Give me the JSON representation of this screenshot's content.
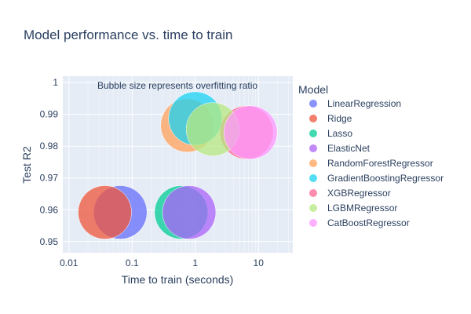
{
  "chart_data": {
    "type": "scatter",
    "title": "Model performance vs. time to train",
    "xlabel": "Time to train (seconds)",
    "ylabel": "Test R2",
    "x_scale": "log",
    "x_range": [
      0.008,
      35
    ],
    "y_range": [
      0.9465,
      1.002
    ],
    "x_ticks": [
      {
        "value": 0.01,
        "label": "0.01"
      },
      {
        "value": 0.1,
        "label": "0.1"
      },
      {
        "value": 1,
        "label": "1"
      },
      {
        "value": 10,
        "label": "10"
      }
    ],
    "y_ticks": [
      {
        "value": 0.95,
        "label": "0.95"
      },
      {
        "value": 0.96,
        "label": "0.96"
      },
      {
        "value": 0.97,
        "label": "0.97"
      },
      {
        "value": 0.98,
        "label": "0.98"
      },
      {
        "value": 0.99,
        "label": "0.99"
      },
      {
        "value": 1.0,
        "label": "1"
      }
    ],
    "annotation": "Bubble size represents overfitting ratio",
    "legend_title": "Model",
    "legend_position": "right",
    "grid": true,
    "series": [
      {
        "name": "LinearRegression",
        "color": "#636efa",
        "x": 0.065,
        "y": 0.9592,
        "size": 1.0
      },
      {
        "name": "Ridge",
        "color": "#ef553b",
        "x": 0.037,
        "y": 0.9592,
        "size": 1.0
      },
      {
        "name": "Lasso",
        "color": "#00cc96",
        "x": 0.6,
        "y": 0.9592,
        "size": 1.0
      },
      {
        "name": "ElasticNet",
        "color": "#ab63fa",
        "x": 0.8,
        "y": 0.9592,
        "size": 1.0
      },
      {
        "name": "RandomForestRegressor",
        "color": "#ffa15a",
        "x": 0.75,
        "y": 0.9865,
        "size": 1.0
      },
      {
        "name": "GradientBoostingRegressor",
        "color": "#19d3f3",
        "x": 1.0,
        "y": 0.9887,
        "size": 1.0
      },
      {
        "name": "XGBRegressor",
        "color": "#ff6692",
        "x": 6.5,
        "y": 0.9843,
        "size": 1.0
      },
      {
        "name": "LGBMRegressor",
        "color": "#b6e880",
        "x": 1.9,
        "y": 0.9853,
        "size": 1.0
      },
      {
        "name": "CatBoostRegressor",
        "color": "#ff97ff",
        "x": 7.5,
        "y": 0.9843,
        "size": 1.0
      }
    ]
  }
}
